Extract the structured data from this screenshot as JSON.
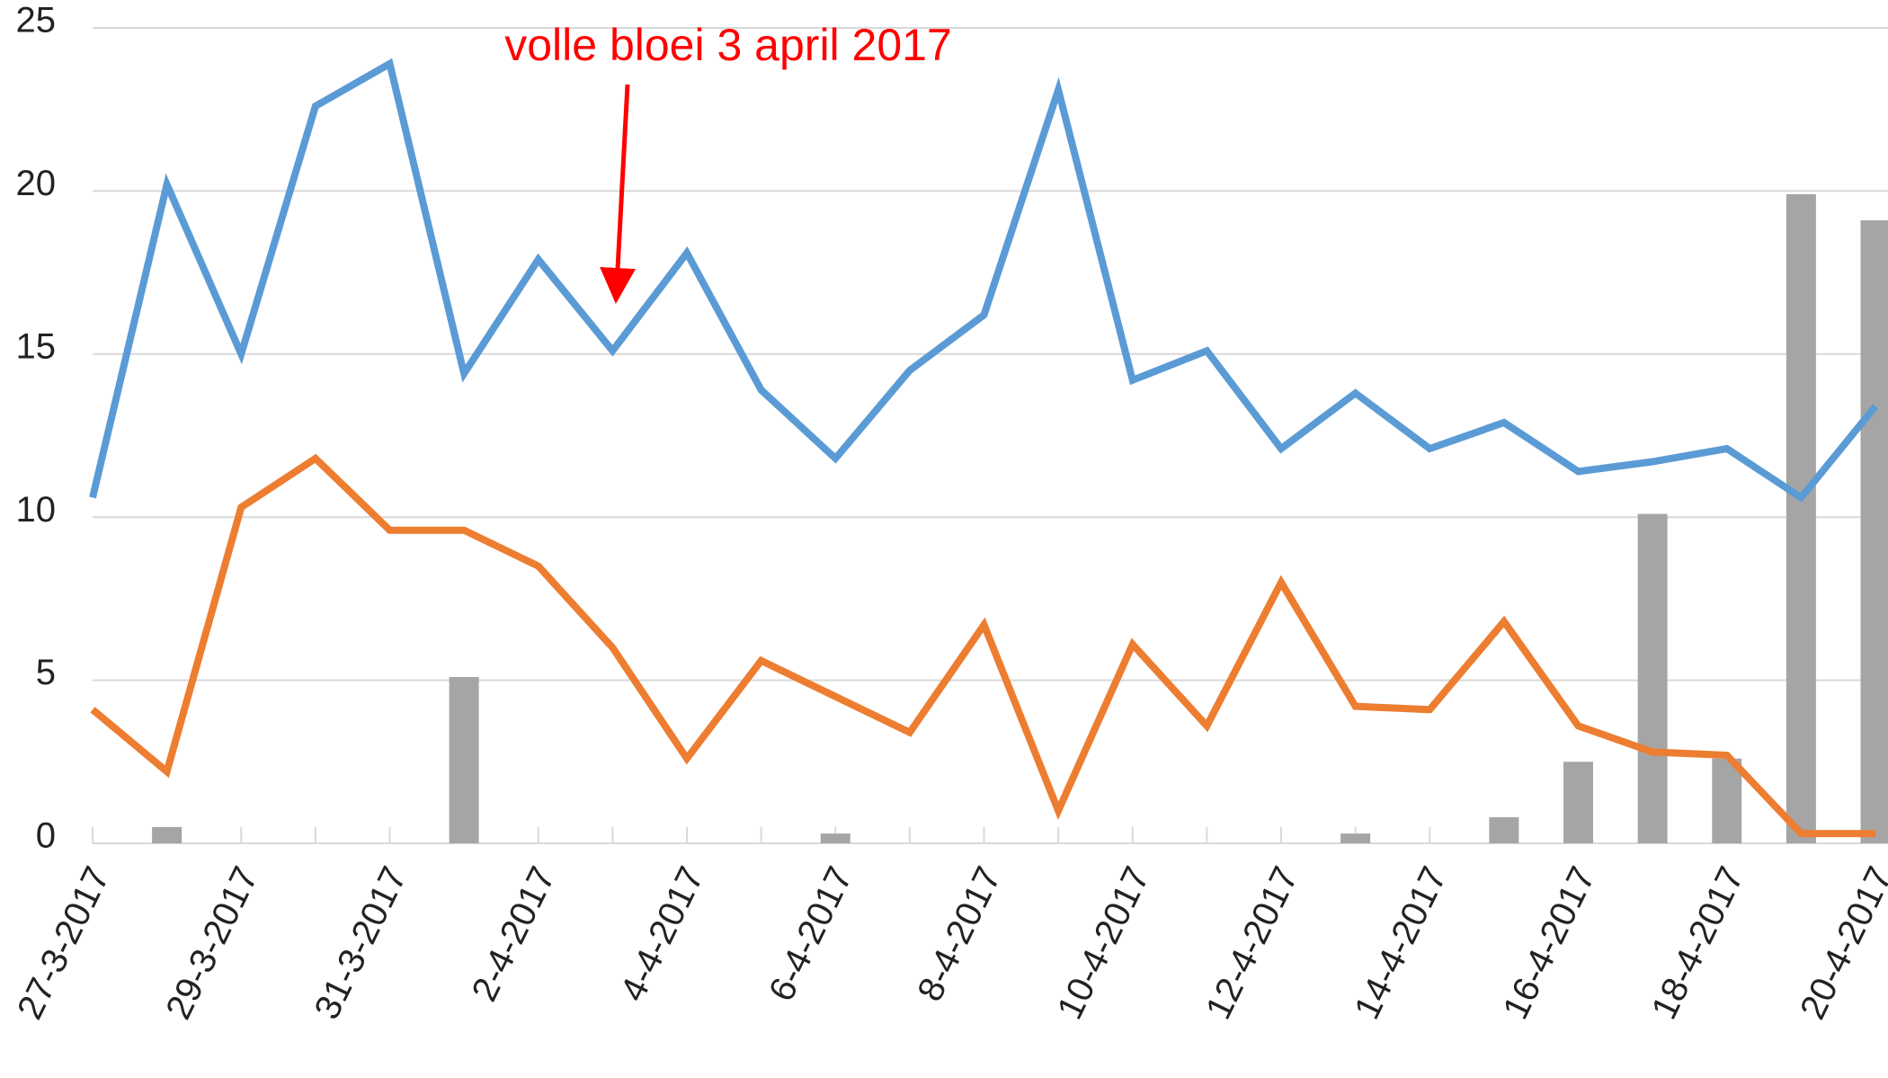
{
  "chart_data": {
    "type": "line",
    "annotation": "volle bloei 3 april 2017",
    "annotation_color": "#ff0000",
    "categories": [
      "27-3-2017",
      null,
      "29-3-2017",
      null,
      "31-3-2017",
      null,
      "2-4-2017",
      null,
      "4-4-2017",
      null,
      "6-4-2017",
      null,
      "8-4-2017",
      null,
      "10-4-2017",
      null,
      "12-4-2017",
      null,
      "14-4-2017",
      null,
      "16-4-2017",
      null,
      "18-4-2017",
      null,
      "20-4-2017"
    ],
    "series": [
      {
        "type": "bar",
        "color": "#a5a5a5",
        "values": [
          0,
          0.5,
          0,
          0,
          0,
          5.1,
          0,
          0,
          0,
          0,
          0.3,
          0,
          0,
          0,
          0,
          0,
          0,
          0.3,
          0,
          0.8,
          2.5,
          10.1,
          2.6,
          19.9,
          19.1
        ]
      },
      {
        "type": "line",
        "color": "#5b9bd5",
        "values": [
          10.6,
          20.2,
          15.0,
          22.6,
          23.9,
          14.4,
          17.9,
          15.1,
          18.1,
          13.9,
          11.8,
          14.5,
          16.2,
          23.1,
          14.2,
          15.1,
          12.1,
          13.8,
          12.1,
          12.9,
          11.4,
          11.7,
          12.1,
          10.6,
          13.4
        ]
      },
      {
        "type": "line",
        "color": "#ed7d31",
        "values": [
          4.1,
          2.2,
          10.3,
          11.8,
          9.6,
          9.6,
          8.5,
          6.0,
          2.6,
          5.6,
          4.5,
          3.4,
          6.7,
          1.0,
          6.1,
          3.6,
          8.0,
          4.2,
          4.1,
          6.8,
          3.6,
          2.8,
          2.7,
          0.3,
          0.3
        ]
      }
    ],
    "ylim": [
      0,
      25
    ],
    "yticks": [
      0,
      5,
      10,
      15,
      20,
      25
    ],
    "grid": true
  }
}
